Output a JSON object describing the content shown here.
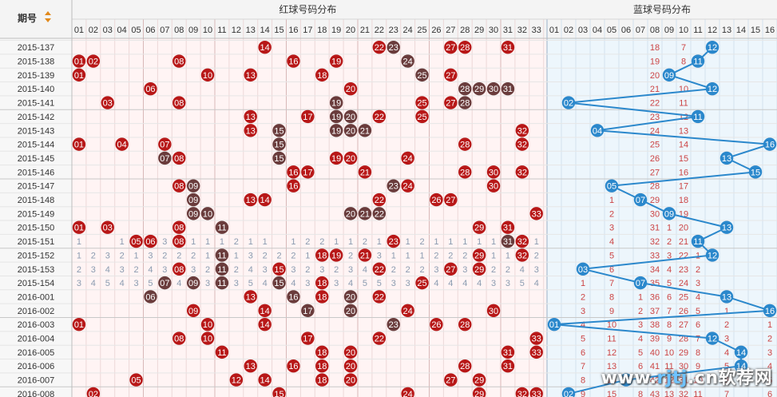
{
  "header": {
    "period_label": "期号",
    "red_title": "红球号码分布",
    "blue_title": "蓝球号码分布",
    "red_numbers": [
      "01",
      "02",
      "03",
      "04",
      "05",
      "06",
      "07",
      "08",
      "09",
      "10",
      "11",
      "12",
      "13",
      "14",
      "15",
      "16",
      "17",
      "18",
      "19",
      "20",
      "21",
      "22",
      "23",
      "24",
      "25",
      "26",
      "27",
      "28",
      "29",
      "30",
      "31",
      "32",
      "33"
    ],
    "blue_numbers": [
      "01",
      "02",
      "03",
      "04",
      "05",
      "06",
      "07",
      "08",
      "09",
      "10",
      "11",
      "12",
      "13",
      "14",
      "15",
      "16"
    ]
  },
  "colors": {
    "red_ball": "#b81818",
    "repeat_ball": "#6a3c3c",
    "blue_ball": "#2b88cc",
    "red_bg": "#fff4f4",
    "blue_bg": "#edf6fc",
    "header_bg": "#f4f4f4",
    "miss_red": "#cc4444",
    "miss_blue": "#3377bb",
    "line": "#2b88cc"
  },
  "rows": [
    {
      "period": "2015-137",
      "red": [
        14,
        22,
        23,
        27,
        28,
        31
      ],
      "repeat": [
        23
      ],
      "blue": 12,
      "blue_miss": {
        "8": "18",
        "10": "7"
      }
    },
    {
      "period": "2015-138",
      "red": [
        1,
        2,
        8,
        16,
        19,
        24
      ],
      "repeat": [
        24
      ],
      "blue": 11,
      "blue_miss": {
        "8": "19",
        "10": "8"
      }
    },
    {
      "period": "2015-139",
      "red": [
        1,
        10,
        13,
        18,
        25,
        27
      ],
      "repeat": [
        25
      ],
      "blue": 9,
      "blue_miss": {
        "8": "20"
      }
    },
    {
      "period": "2015-140",
      "red": [
        6,
        20,
        28,
        29,
        30,
        31
      ],
      "repeat": [
        28,
        29,
        30,
        31
      ],
      "blue": 12,
      "blue_miss": {
        "8": "21",
        "10": "10"
      }
    },
    {
      "period": "2015-141",
      "red": [
        3,
        8,
        19,
        25,
        27,
        28
      ],
      "repeat": [
        19,
        28
      ],
      "blue": 2,
      "blue_miss": {
        "8": "22",
        "10": "11"
      }
    },
    {
      "period": "2015-142",
      "red": [
        13,
        17,
        19,
        20,
        22,
        25
      ],
      "repeat": [
        19,
        20
      ],
      "blue": 11,
      "blue_miss": {
        "8": "23",
        "10": "12"
      }
    },
    {
      "period": "2015-143",
      "red": [
        13,
        15,
        19,
        20,
        21,
        32
      ],
      "repeat": [
        15,
        19,
        20,
        21
      ],
      "blue": 4,
      "blue_miss": {
        "8": "24",
        "10": "13"
      }
    },
    {
      "period": "2015-144",
      "red": [
        1,
        4,
        7,
        15,
        28,
        32
      ],
      "repeat": [
        15
      ],
      "blue": 16,
      "blue_miss": {
        "8": "25",
        "10": "14"
      }
    },
    {
      "period": "2015-145",
      "red": [
        7,
        8,
        15,
        19,
        20,
        24
      ],
      "repeat": [
        7,
        15
      ],
      "blue": 13,
      "blue_miss": {
        "8": "26",
        "10": "15"
      }
    },
    {
      "period": "2015-146",
      "red": [
        16,
        17,
        21,
        28,
        30,
        32
      ],
      "repeat": [],
      "blue": 15,
      "blue_miss": {
        "8": "27",
        "10": "16"
      }
    },
    {
      "period": "2015-147",
      "red": [
        8,
        9,
        16,
        23,
        24,
        30
      ],
      "repeat": [
        9,
        23
      ],
      "blue": 5,
      "blue_miss": {
        "8": "28",
        "10": "17"
      }
    },
    {
      "period": "2015-148",
      "red": [
        9,
        13,
        14,
        22,
        26,
        27
      ],
      "repeat": [
        9
      ],
      "blue": 7,
      "blue_miss": {
        "5": "1",
        "8": "29",
        "10": "18"
      }
    },
    {
      "period": "2015-149",
      "red": [
        9,
        10,
        20,
        21,
        22,
        33
      ],
      "repeat": [
        9,
        10,
        20,
        21,
        22
      ],
      "blue": 9,
      "blue_miss": {
        "5": "2",
        "8": "30",
        "10": "19"
      }
    },
    {
      "period": "2015-150",
      "red": [
        1,
        3,
        8,
        11,
        29,
        31
      ],
      "repeat": [
        11
      ],
      "blue": 13,
      "blue_miss": {
        "5": "3",
        "8": "31",
        "9": "1",
        "10": "20"
      }
    },
    {
      "period": "2015-151",
      "red": [
        5,
        6,
        8,
        23,
        31,
        32
      ],
      "repeat": [
        31
      ],
      "blue": 11,
      "blue_miss": {
        "5": "4",
        "8": "32",
        "9": "2",
        "10": "21"
      }
    },
    {
      "period": "2015-152",
      "red": [
        11,
        18,
        19,
        21,
        29,
        32
      ],
      "repeat": [
        11
      ],
      "blue": 12,
      "blue_miss": {
        "5": "5",
        "8": "33",
        "9": "3",
        "10": "22",
        "11": "1"
      }
    },
    {
      "period": "2015-153",
      "red": [
        8,
        11,
        15,
        22,
        27,
        29
      ],
      "repeat": [
        11
      ],
      "blue": 3,
      "blue_miss": {
        "5": "6",
        "8": "34",
        "9": "4",
        "10": "23",
        "11": "2"
      }
    },
    {
      "period": "2015-154",
      "red": [
        7,
        9,
        11,
        15,
        18,
        25
      ],
      "repeat": [
        7,
        9,
        11,
        15
      ],
      "blue": 7,
      "blue_miss": {
        "3": "1",
        "5": "7",
        "8": "35",
        "9": "5",
        "10": "24",
        "11": "3"
      }
    },
    {
      "period": "2016-001",
      "red": [
        6,
        13,
        16,
        18,
        20,
        22
      ],
      "repeat": [
        6,
        16,
        20
      ],
      "blue": 13,
      "blue_miss": {
        "3": "2",
        "5": "8",
        "7": "1",
        "8": "36",
        "9": "6",
        "10": "25",
        "11": "4"
      }
    },
    {
      "period": "2016-002",
      "red": [
        9,
        14,
        17,
        20,
        24,
        30
      ],
      "repeat": [
        17,
        20
      ],
      "blue": 16,
      "blue_miss": {
        "3": "3",
        "5": "9",
        "7": "2",
        "8": "37",
        "9": "7",
        "10": "26",
        "11": "5",
        "13": "1"
      }
    },
    {
      "period": "2016-003",
      "red": [
        1,
        10,
        14,
        23,
        26,
        28
      ],
      "repeat": [
        23
      ],
      "blue": 1,
      "blue_miss": {
        "3": "4",
        "5": "10",
        "7": "3",
        "8": "38",
        "9": "8",
        "10": "27",
        "11": "6",
        "13": "2",
        "16": "1"
      }
    },
    {
      "period": "2016-004",
      "red": [
        8,
        10,
        17,
        22,
        33
      ],
      "repeat": [],
      "blue": 12,
      "blue_miss": {
        "3": "5",
        "5": "11",
        "7": "4",
        "8": "39",
        "9": "9",
        "10": "28",
        "11": "7",
        "13": "3",
        "16": "2"
      }
    },
    {
      "period": "2016-005",
      "red": [
        11,
        18,
        20,
        31,
        33
      ],
      "repeat": [],
      "blue": 14,
      "blue_miss": {
        "3": "6",
        "5": "12",
        "7": "5",
        "8": "40",
        "9": "10",
        "10": "29",
        "11": "8",
        "13": "4",
        "16": "3"
      }
    },
    {
      "period": "2016-006",
      "red": [
        13,
        16,
        18,
        20,
        28,
        31
      ],
      "repeat": [],
      "blue": 14,
      "blue_miss": {
        "3": "7",
        "5": "13",
        "7": "6",
        "8": "41",
        "9": "11",
        "10": "30",
        "11": "9",
        "13": "5",
        "16": "4"
      }
    },
    {
      "period": "2016-007",
      "red": [
        5,
        12,
        14,
        18,
        20,
        27,
        29
      ],
      "repeat": [],
      "blue": 6,
      "blue_miss": {
        "3": "8",
        "5": "14",
        "7": "7",
        "8": "42",
        "9": "12",
        "10": "31",
        "11": "10",
        "13": "6",
        "16": "5"
      }
    },
    {
      "period": "2016-008",
      "red": [
        2,
        15,
        24,
        29,
        32,
        33
      ],
      "repeat": [],
      "blue": 2,
      "blue_miss": {
        "3": "9",
        "5": "15",
        "7": "8",
        "8": "43",
        "9": "13",
        "10": "32",
        "11": "11",
        "13": "7",
        "16": "6"
      }
    }
  ],
  "red_miss_text": {
    "14": {
      "1": "1",
      "4": "1",
      "6": "2",
      "7": "3",
      "8": "1",
      "9": "1",
      "10": "1",
      "11": "1",
      "12": "2",
      "13": "1",
      "14": "1",
      "16": "1",
      "17": "2",
      "18": "2",
      "19": "1",
      "20": "1",
      "21": "2",
      "22": "1",
      "23": "2",
      "24": "1",
      "25": "2",
      "26": "1",
      "27": "1",
      "28": "1",
      "29": "1",
      "30": "1",
      "31": "2",
      "32": "1",
      "33": "1"
    },
    "15": {
      "1": "1",
      "2": "2",
      "3": "3",
      "4": "2",
      "5": "1",
      "6": "3",
      "7": "2",
      "8": "2",
      "9": "2",
      "10": "1",
      "11": "2",
      "12": "1",
      "13": "3",
      "14": "2",
      "15": "2",
      "16": "2",
      "17": "1",
      "18": "2",
      "19": "1",
      "20": "2",
      "21": "3",
      "22": "3",
      "23": "1",
      "24": "1",
      "25": "1",
      "26": "2",
      "27": "2",
      "28": "2",
      "29": "2",
      "30": "1",
      "31": "1",
      "32": "3",
      "33": "2"
    },
    "16": {
      "1": "2",
      "2": "3",
      "3": "4",
      "4": "3",
      "5": "2",
      "6": "4",
      "7": "3",
      "8": "3",
      "9": "3",
      "10": "2",
      "11": "3",
      "12": "2",
      "13": "4",
      "14": "3",
      "15": "3",
      "16": "3",
      "17": "2",
      "18": "3",
      "19": "2",
      "20": "3",
      "21": "4",
      "22": "4",
      "23": "2",
      "24": "2",
      "25": "2",
      "26": "3",
      "27": "3",
      "28": "3",
      "29": "3",
      "30": "2",
      "31": "2",
      "32": "4",
      "33": "3"
    },
    "17": {
      "1": "3",
      "2": "4",
      "3": "5",
      "4": "4",
      "5": "3",
      "6": "5",
      "7": "4",
      "8": "4",
      "9": "4",
      "10": "3",
      "11": "4",
      "12": "3",
      "13": "5",
      "14": "4",
      "15": "4",
      "16": "4",
      "17": "3",
      "18": "4",
      "19": "3",
      "20": "4",
      "21": "5",
      "22": "5",
      "23": "3",
      "24": "3",
      "25": "3",
      "26": "4",
      "27": "4",
      "28": "4",
      "29": "4",
      "30": "3",
      "31": "3",
      "32": "5",
      "33": "4"
    }
  },
  "watermark": {
    "prefix": "www.",
    "main": "rjtj",
    "suffix": ".cn软荐网"
  }
}
